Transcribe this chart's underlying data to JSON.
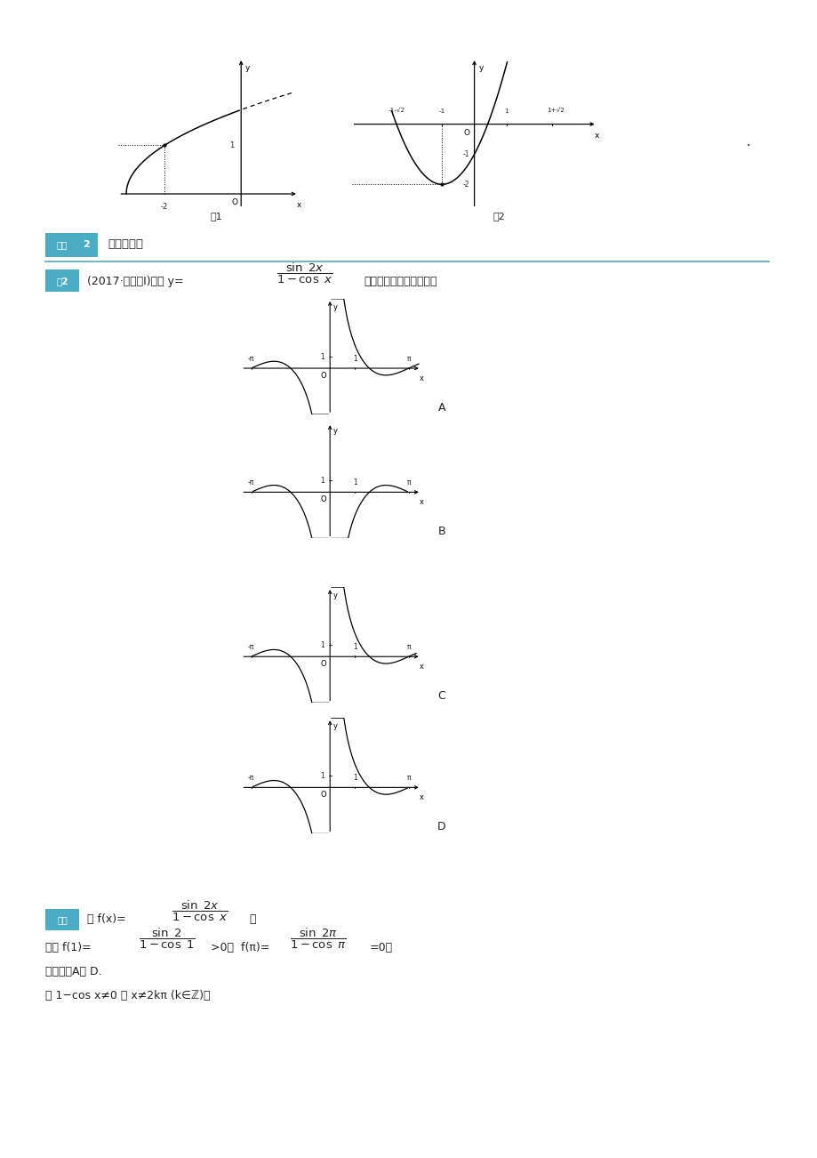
{
  "bg_color": "#ffffff",
  "fig1_label": "图1",
  "fig2_label": "图2",
  "key_point_text": "识图与辨图",
  "example_text": "(2017·全国卷Ⅰ)函数 y=",
  "example_suffix": "的部分图象大致为（　）",
  "option_A": "A",
  "option_B": "B",
  "option_C": "C",
  "option_D": "D",
  "sol_badge": "解析",
  "sol_text1": "令 f(x)=",
  "sol_comma": "，",
  "sol_text3": "因为 f(1)=",
  "sol_text4": ">0，  f(π)=",
  "sol_text5": "=0，",
  "sol_text6": "所以排除A， D.",
  "sol_text7": "由 1−cos x≠0 得 x≠2kπ (k∈ℤ)，",
  "badge_color": "#4BACC6",
  "text_color": "#222222"
}
